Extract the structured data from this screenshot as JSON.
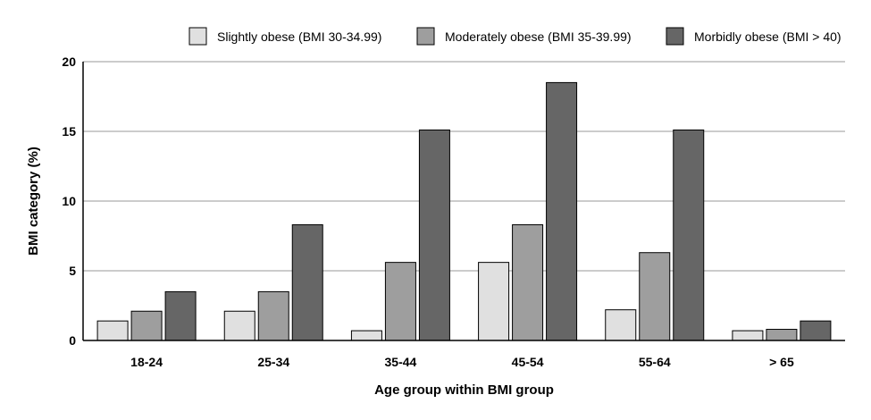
{
  "chart_data": {
    "type": "bar",
    "title": "",
    "xlabel": "Age group within BMI group",
    "ylabel": "BMI category (%)",
    "ylim": [
      0,
      20
    ],
    "yticks": [
      0,
      5,
      10,
      15,
      20
    ],
    "ytick_labels": [
      "0",
      "5",
      "10",
      "15",
      "20"
    ],
    "grid": true,
    "legend_position": "top-right",
    "categories": [
      "18-24",
      "25-34",
      "35-44",
      "45-54",
      "55-64",
      "> 65"
    ],
    "series": [
      {
        "name": "Slightly obese (BMI 30-34.99)",
        "color": "#e0e0e0",
        "values": [
          1.4,
          2.1,
          0.7,
          5.6,
          2.2,
          0.7
        ]
      },
      {
        "name": "Moderately obese (BMI 35-39.99)",
        "color": "#9e9e9e",
        "values": [
          2.1,
          3.5,
          5.6,
          8.3,
          6.3,
          0.8
        ]
      },
      {
        "name": "Morbidly obese (BMI > 40)",
        "color": "#666666",
        "values": [
          3.5,
          8.3,
          15.1,
          18.5,
          15.1,
          1.4
        ]
      }
    ]
  }
}
